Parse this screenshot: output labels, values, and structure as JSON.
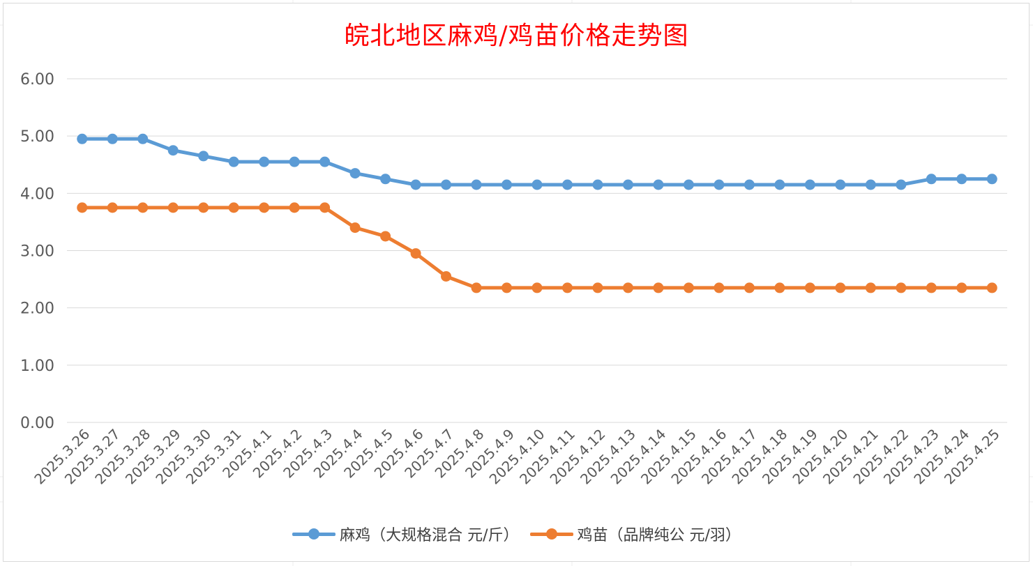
{
  "chart_data": {
    "type": "line",
    "title": "皖北地区麻鸡/鸡苗价格走势图",
    "xlabel": "",
    "ylabel": "",
    "ylim": [
      0,
      6
    ],
    "yticks": [
      "0.00",
      "1.00",
      "2.00",
      "3.00",
      "4.00",
      "5.00",
      "6.00"
    ],
    "grid": true,
    "legend_position": "bottom",
    "categories": [
      "2025.3.26",
      "2025.3.27",
      "2025.3.28",
      "2025.3.29",
      "2025.3.30",
      "2025.3.31",
      "2025.4.1",
      "2025.4.2",
      "2025.4.3",
      "2025.4.4",
      "2025.4.5",
      "2025.4.6",
      "2025.4.7",
      "2025.4.8",
      "2025.4.9",
      "2025.4.10",
      "2025.4.11",
      "2025.4.12",
      "2025.4.13",
      "2025.4.14",
      "2025.4.15",
      "2025.4.16",
      "2025.4.17",
      "2025.4.18",
      "2025.4.19",
      "2025.4.20",
      "2025.4.21",
      "2025.4.22",
      "2025.4.23",
      "2025.4.24",
      "2025.4.25"
    ],
    "series": [
      {
        "name": "麻鸡（大规格混合 元/斤）",
        "color": "#5b9bd5",
        "values": [
          4.95,
          4.95,
          4.95,
          4.75,
          4.65,
          4.55,
          4.55,
          4.55,
          4.55,
          4.35,
          4.25,
          4.15,
          4.15,
          4.15,
          4.15,
          4.15,
          4.15,
          4.15,
          4.15,
          4.15,
          4.15,
          4.15,
          4.15,
          4.15,
          4.15,
          4.15,
          4.15,
          4.15,
          4.25,
          4.25,
          4.25
        ]
      },
      {
        "name": "鸡苗（品牌纯公 元/羽）",
        "color": "#ed7d31",
        "values": [
          3.75,
          3.75,
          3.75,
          3.75,
          3.75,
          3.75,
          3.75,
          3.75,
          3.75,
          3.4,
          3.25,
          2.95,
          2.55,
          2.35,
          2.35,
          2.35,
          2.35,
          2.35,
          2.35,
          2.35,
          2.35,
          2.35,
          2.35,
          2.35,
          2.35,
          2.35,
          2.35,
          2.35,
          2.35,
          2.35,
          2.35
        ]
      }
    ]
  }
}
